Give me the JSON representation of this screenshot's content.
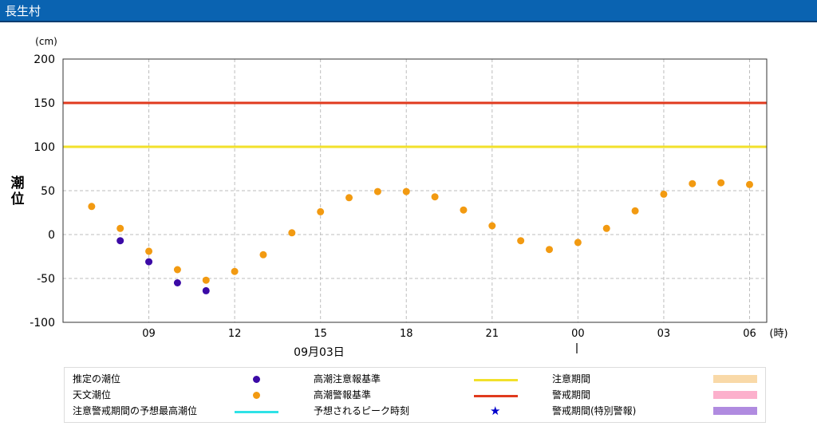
{
  "header": {
    "title": "長生村"
  },
  "chart_data": {
    "type": "scatter",
    "unit": "(cm)",
    "ylabel": "潮位",
    "xunit": "(時)",
    "date_label": "09月03日",
    "ylim": [
      -100,
      200
    ],
    "yticks": [
      -100,
      -50,
      0,
      50,
      100,
      150,
      200
    ],
    "x_start_hour": 6,
    "x_hours_span": 24.6,
    "xtick_hours": [
      9,
      12,
      15,
      18,
      21,
      24,
      27,
      30
    ],
    "xtick_labels": [
      "09",
      "12",
      "15",
      "18",
      "21",
      "00",
      "03",
      "06"
    ],
    "hlines": [
      {
        "name": "高潮注意報基準",
        "value": 100,
        "color": "#f2e12b"
      },
      {
        "name": "高潮警報基準",
        "value": 150,
        "color": "#e03a1e"
      }
    ],
    "series": [
      {
        "name": "天文潮位",
        "color": "#f29a11",
        "x": [
          7,
          8,
          9,
          10,
          11,
          12,
          13,
          14,
          15,
          16,
          17,
          18,
          19,
          20,
          21,
          22,
          23,
          24,
          25,
          26,
          27,
          28,
          29,
          30
        ],
        "values": [
          32,
          7,
          -19,
          -40,
          -52,
          -42,
          -23,
          2,
          26,
          42,
          49,
          49,
          43,
          28,
          10,
          -7,
          -17,
          -9,
          7,
          27,
          46,
          58,
          59,
          57
        ]
      },
      {
        "name": "推定の潮位",
        "color": "#3b0aa6",
        "x": [
          8,
          9,
          10,
          11
        ],
        "values": [
          -7,
          -31,
          -55,
          -64
        ]
      }
    ]
  },
  "legend": {
    "items": [
      {
        "label": "推定の潮位",
        "kind": "dot",
        "color": "#3b0aa6"
      },
      {
        "label": "高潮注意報基準",
        "kind": "line",
        "color": "#f2e12b"
      },
      {
        "label": "注意期間",
        "kind": "box",
        "color": "#f9d9a8"
      },
      {
        "label": "天文潮位",
        "kind": "dot",
        "color": "#f29a11"
      },
      {
        "label": "高潮警報基準",
        "kind": "line",
        "color": "#e03a1e"
      },
      {
        "label": "警戒期間",
        "kind": "box",
        "color": "#fcb0cc"
      },
      {
        "label": "注意警戒期間の予想最高潮位",
        "kind": "line",
        "color": "#2fe2e6"
      },
      {
        "label": "予想されるピーク時刻",
        "kind": "star",
        "color": "#0000cc"
      },
      {
        "label": "警戒期間(特別警報)",
        "kind": "box",
        "color": "#b08be0"
      }
    ]
  }
}
